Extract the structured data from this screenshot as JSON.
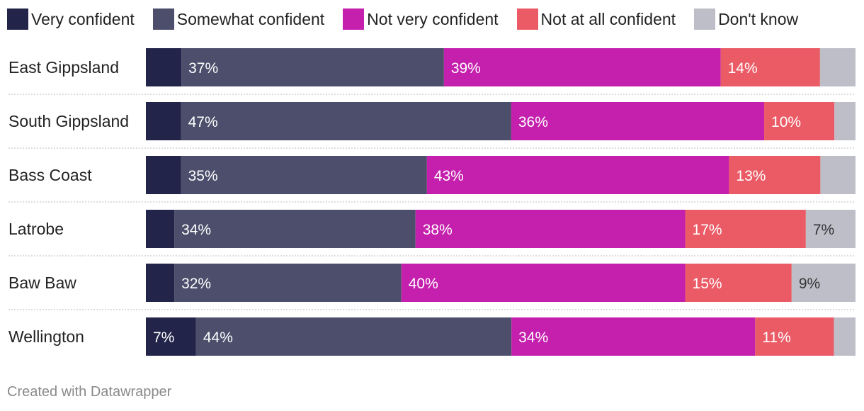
{
  "chart_data": {
    "type": "bar",
    "orientation": "horizontal",
    "stacked": true,
    "title": "",
    "xlabel": "",
    "ylabel": "",
    "xlim": [
      0,
      100
    ],
    "legend_position": "top",
    "categories": [
      "East Gippsland",
      "South Gippsland",
      "Bass Coast",
      "Latrobe",
      "Baw Baw",
      "Wellington"
    ],
    "series": [
      {
        "name": "Very confident",
        "color": "#22244a",
        "values": [
          5,
          5,
          5,
          4,
          4,
          7
        ],
        "labels": [
          "",
          "",
          "",
          "",
          "",
          "7%"
        ]
      },
      {
        "name": "Somewhat confident",
        "color": "#4c4e6b",
        "values": [
          37,
          47,
          35,
          34,
          32,
          44
        ],
        "labels": [
          "37%",
          "47%",
          "35%",
          "34%",
          "32%",
          "44%"
        ]
      },
      {
        "name": "Not very confident",
        "color": "#c41fad",
        "values": [
          39,
          36,
          43,
          38,
          40,
          34
        ],
        "labels": [
          "39%",
          "36%",
          "43%",
          "38%",
          "40%",
          "34%"
        ]
      },
      {
        "name": "Not at all confident",
        "color": "#ea5b66",
        "values": [
          14,
          10,
          13,
          17,
          15,
          11
        ],
        "labels": [
          "14%",
          "10%",
          "13%",
          "17%",
          "15%",
          "11%"
        ]
      },
      {
        "name": "Don't know",
        "color": "#bebec8",
        "values": [
          5,
          3,
          5,
          7,
          9,
          3
        ],
        "labels": [
          "",
          "",
          "",
          "7%",
          "9%",
          ""
        ]
      }
    ]
  },
  "footer": "Created with Datawrapper"
}
